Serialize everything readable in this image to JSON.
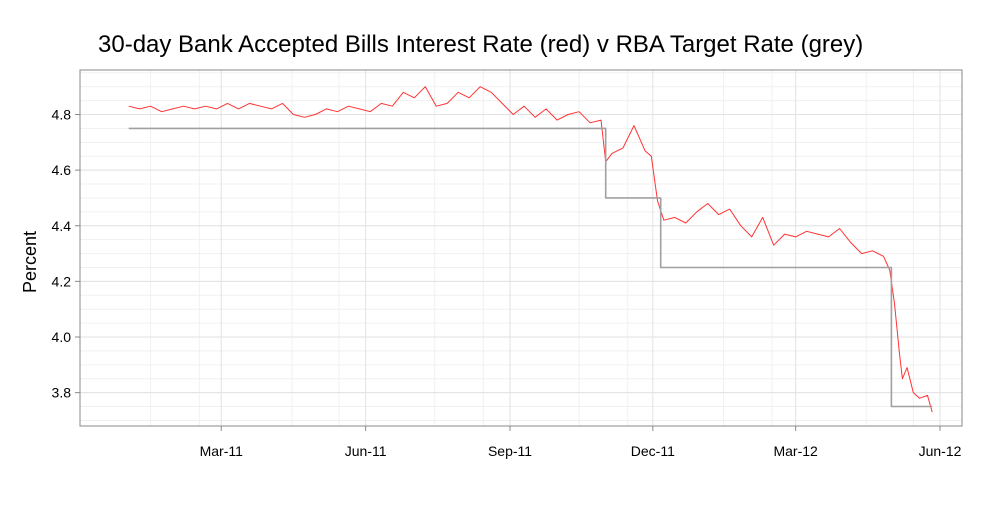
{
  "chart_data": {
    "type": "line",
    "title": "30-day Bank Accepted Bills Interest Rate (red) v RBA Target Rate (grey)",
    "xlabel": "",
    "ylabel": "Percent",
    "xlim": [
      "2010-12-01",
      "2012-06-15"
    ],
    "ylim": [
      3.68,
      4.96
    ],
    "grid": true,
    "x_ticks": [
      {
        "date": "2011-03-01",
        "label": "Mar-11"
      },
      {
        "date": "2011-06-01",
        "label": "Jun-11"
      },
      {
        "date": "2011-09-01",
        "label": "Sep-11"
      },
      {
        "date": "2011-12-01",
        "label": "Dec-11"
      },
      {
        "date": "2012-03-01",
        "label": "Mar-12"
      },
      {
        "date": "2012-06-01",
        "label": "Jun-12"
      }
    ],
    "y_ticks": [
      {
        "value": 3.8,
        "label": "3.8"
      },
      {
        "value": 4.0,
        "label": "4.0"
      },
      {
        "value": 4.2,
        "label": "4.2"
      },
      {
        "value": 4.4,
        "label": "4.4"
      },
      {
        "value": 4.6,
        "label": "4.6"
      },
      {
        "value": 4.8,
        "label": "4.8"
      }
    ],
    "series": [
      {
        "color": "#ff3333",
        "style": "line",
        "points": [
          [
            "2011-01-01",
            4.83
          ],
          [
            "2011-01-08",
            4.82
          ],
          [
            "2011-01-15",
            4.83
          ],
          [
            "2011-01-22",
            4.81
          ],
          [
            "2011-01-29",
            4.82
          ],
          [
            "2011-02-05",
            4.83
          ],
          [
            "2011-02-12",
            4.82
          ],
          [
            "2011-02-19",
            4.83
          ],
          [
            "2011-02-26",
            4.82
          ],
          [
            "2011-03-05",
            4.84
          ],
          [
            "2011-03-12",
            4.82
          ],
          [
            "2011-03-19",
            4.84
          ],
          [
            "2011-03-26",
            4.83
          ],
          [
            "2011-04-02",
            4.82
          ],
          [
            "2011-04-09",
            4.84
          ],
          [
            "2011-04-16",
            4.8
          ],
          [
            "2011-04-23",
            4.79
          ],
          [
            "2011-04-30",
            4.8
          ],
          [
            "2011-05-07",
            4.82
          ],
          [
            "2011-05-14",
            4.81
          ],
          [
            "2011-05-21",
            4.83
          ],
          [
            "2011-05-28",
            4.82
          ],
          [
            "2011-06-04",
            4.81
          ],
          [
            "2011-06-11",
            4.84
          ],
          [
            "2011-06-18",
            4.83
          ],
          [
            "2011-06-25",
            4.88
          ],
          [
            "2011-07-02",
            4.86
          ],
          [
            "2011-07-09",
            4.9
          ],
          [
            "2011-07-16",
            4.83
          ],
          [
            "2011-07-23",
            4.84
          ],
          [
            "2011-07-30",
            4.88
          ],
          [
            "2011-08-06",
            4.86
          ],
          [
            "2011-08-13",
            4.9
          ],
          [
            "2011-08-20",
            4.88
          ],
          [
            "2011-08-27",
            4.84
          ],
          [
            "2011-09-03",
            4.8
          ],
          [
            "2011-09-10",
            4.83
          ],
          [
            "2011-09-17",
            4.79
          ],
          [
            "2011-09-24",
            4.82
          ],
          [
            "2011-10-01",
            4.78
          ],
          [
            "2011-10-08",
            4.8
          ],
          [
            "2011-10-15",
            4.81
          ],
          [
            "2011-10-22",
            4.77
          ],
          [
            "2011-10-29",
            4.78
          ],
          [
            "2011-11-01",
            4.63
          ],
          [
            "2011-11-05",
            4.66
          ],
          [
            "2011-11-12",
            4.68
          ],
          [
            "2011-11-19",
            4.76
          ],
          [
            "2011-11-26",
            4.67
          ],
          [
            "2011-11-30",
            4.65
          ],
          [
            "2011-12-04",
            4.49
          ],
          [
            "2011-12-08",
            4.42
          ],
          [
            "2011-12-15",
            4.43
          ],
          [
            "2011-12-22",
            4.41
          ],
          [
            "2011-12-29",
            4.45
          ],
          [
            "2012-01-05",
            4.48
          ],
          [
            "2012-01-12",
            4.44
          ],
          [
            "2012-01-19",
            4.46
          ],
          [
            "2012-01-26",
            4.4
          ],
          [
            "2012-02-02",
            4.36
          ],
          [
            "2012-02-09",
            4.43
          ],
          [
            "2012-02-16",
            4.33
          ],
          [
            "2012-02-23",
            4.37
          ],
          [
            "2012-03-01",
            4.36
          ],
          [
            "2012-03-08",
            4.38
          ],
          [
            "2012-03-15",
            4.37
          ],
          [
            "2012-03-22",
            4.36
          ],
          [
            "2012-03-29",
            4.39
          ],
          [
            "2012-04-05",
            4.34
          ],
          [
            "2012-04-12",
            4.3
          ],
          [
            "2012-04-19",
            4.31
          ],
          [
            "2012-04-26",
            4.29
          ],
          [
            "2012-04-30",
            4.24
          ],
          [
            "2012-05-03",
            4.12
          ],
          [
            "2012-05-06",
            3.95
          ],
          [
            "2012-05-08",
            3.85
          ],
          [
            "2012-05-11",
            3.89
          ],
          [
            "2012-05-15",
            3.8
          ],
          [
            "2012-05-19",
            3.78
          ],
          [
            "2012-05-24",
            3.79
          ],
          [
            "2012-05-27",
            3.73
          ]
        ]
      },
      {
        "color": "#a0a0a0",
        "style": "step",
        "points": [
          [
            "2011-01-01",
            4.75
          ],
          [
            "2011-11-01",
            4.75
          ],
          [
            "2011-11-01",
            4.5
          ],
          [
            "2011-12-06",
            4.5
          ],
          [
            "2011-12-06",
            4.25
          ],
          [
            "2012-05-01",
            4.25
          ],
          [
            "2012-05-01",
            3.75
          ],
          [
            "2012-05-27",
            3.75
          ]
        ]
      }
    ]
  }
}
